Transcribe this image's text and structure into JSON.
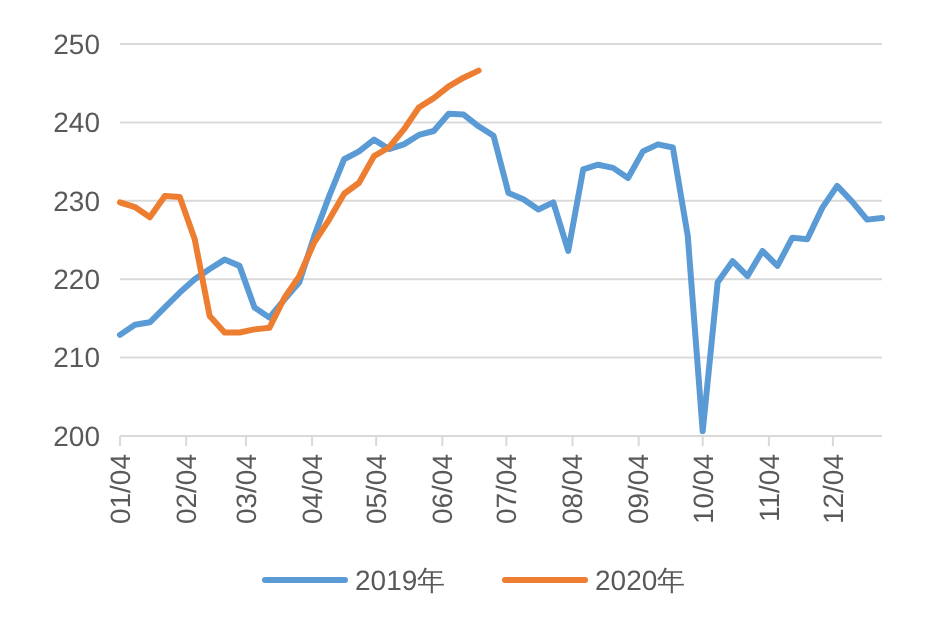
{
  "chart_data": {
    "type": "line",
    "x": [
      "--01-04",
      "--01-11",
      "--01-18",
      "--01-25",
      "--02-01",
      "--02-08",
      "--02-15",
      "--02-22",
      "--03-01",
      "--03-08",
      "--03-15",
      "--03-22",
      "--03-29",
      "--04-05",
      "--04-12",
      "--04-19",
      "--04-26",
      "--05-03",
      "--05-10",
      "--05-17",
      "--05-24",
      "--05-31",
      "--06-07",
      "--06-14",
      "--06-21",
      "--06-28",
      "--07-05",
      "--07-12",
      "--07-19",
      "--07-26",
      "--08-02",
      "--08-09",
      "--08-16",
      "--08-23",
      "--08-30",
      "--09-06",
      "--09-13",
      "--09-20",
      "--09-27",
      "--10-04",
      "--10-11",
      "--10-18",
      "--10-25",
      "--11-01",
      "--11-08",
      "--11-15",
      "--11-22",
      "--11-29",
      "--12-06",
      "--12-13",
      "--12-20",
      "--12-27"
    ],
    "series": [
      {
        "name": "2019年",
        "color": "#5b9bd5",
        "values": [
          212.9,
          214.2,
          214.5,
          216.4,
          218.3,
          220.0,
          221.3,
          222.5,
          221.7,
          216.4,
          215.1,
          217.4,
          219.6,
          225.5,
          230.6,
          235.3,
          236.3,
          237.8,
          236.6,
          237.2,
          238.4,
          238.9,
          241.1,
          241.0,
          239.5,
          238.3,
          231.0,
          230.2,
          228.9,
          229.8,
          223.6,
          234.0,
          234.6,
          234.2,
          232.9,
          236.3,
          237.2,
          236.8,
          225.5,
          200.6,
          219.6,
          222.3,
          220.4,
          223.6,
          221.7,
          225.3,
          225.1,
          229.1,
          231.9,
          229.9,
          227.6,
          227.8
        ]
      },
      {
        "name": "2020年",
        "color": "#ed7d31",
        "x": [
          "--01-04",
          "--01-11",
          "--01-18",
          "--01-25",
          "--02-01",
          "--02-08",
          "--02-15",
          "--02-22",
          "--03-01",
          "--03-08",
          "--03-15",
          "--03-22",
          "--03-29",
          "--04-05",
          "--04-12",
          "--04-19",
          "--04-26",
          "--05-03",
          "--05-10",
          "--05-17",
          "--05-24",
          "--05-31",
          "--06-07",
          "--06-14",
          "--06-21"
        ],
        "values": [
          229.8,
          229.2,
          227.9,
          230.6,
          230.5,
          225.1,
          215.3,
          213.2,
          213.2,
          213.6,
          213.8,
          217.6,
          220.4,
          224.7,
          227.6,
          230.9,
          232.3,
          235.7,
          236.8,
          239.1,
          241.9,
          243.1,
          244.6,
          245.7,
          246.6
        ]
      }
    ],
    "xlim": [
      "--01-04",
      "--12-27"
    ],
    "xticks": [
      {
        "value": "--01-04",
        "label": "01/04"
      },
      {
        "value": "--02-04",
        "label": "02/04"
      },
      {
        "value": "--03-04",
        "label": "03/04"
      },
      {
        "value": "--04-04",
        "label": "04/04"
      },
      {
        "value": "--05-04",
        "label": "05/04"
      },
      {
        "value": "--06-04",
        "label": "06/04"
      },
      {
        "value": "--07-04",
        "label": "07/04"
      },
      {
        "value": "--08-04",
        "label": "08/04"
      },
      {
        "value": "--09-04",
        "label": "09/04"
      },
      {
        "value": "--10-04",
        "label": "10/04"
      },
      {
        "value": "--11-04",
        "label": "11/04"
      },
      {
        "value": "--12-04",
        "label": "12/04"
      }
    ],
    "ylim": [
      200,
      250
    ],
    "yticks": [
      200,
      210,
      220,
      230,
      240,
      250
    ],
    "grid": "y",
    "legend": "bottom",
    "marker": "none",
    "line_style": "solid"
  }
}
